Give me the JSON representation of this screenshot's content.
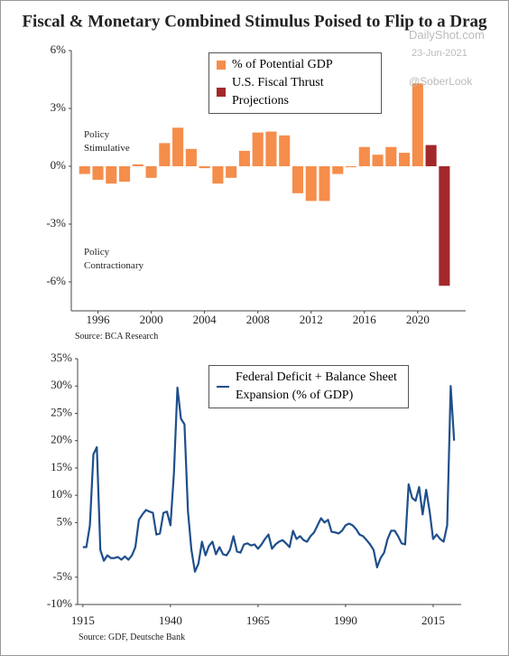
{
  "chart_data": [
    {
      "type": "bar",
      "title": "Fiscal & Monetary Combined Stimulus Poised to Flip to a Drag",
      "x": [
        1995,
        1996,
        1997,
        1998,
        1999,
        2000,
        2001,
        2002,
        2003,
        2004,
        2005,
        2006,
        2007,
        2008,
        2009,
        2010,
        2011,
        2012,
        2013,
        2014,
        2015,
        2016,
        2017,
        2018,
        2019,
        2020,
        2021,
        2022
      ],
      "series": [
        {
          "name": "% of Potential GDP",
          "color": "#f58d4b",
          "values": [
            -0.4,
            -0.7,
            -0.9,
            -0.8,
            0.1,
            -0.6,
            1.2,
            2.0,
            0.9,
            -0.1,
            -0.9,
            -0.6,
            0.8,
            1.75,
            1.8,
            1.6,
            -1.4,
            -1.8,
            -1.8,
            -0.4,
            -0.05,
            1.0,
            0.6,
            1.0,
            0.7,
            4.3,
            null,
            null
          ]
        },
        {
          "name": "U.S. Fiscal Thrust Projections",
          "color": "#a3282b",
          "values": [
            null,
            null,
            null,
            null,
            null,
            null,
            null,
            null,
            null,
            null,
            null,
            null,
            null,
            null,
            null,
            null,
            null,
            null,
            null,
            null,
            null,
            null,
            null,
            null,
            null,
            null,
            1.1,
            -6.2
          ]
        }
      ],
      "xlim": [
        1994,
        2023.6
      ],
      "xticks": [
        1996,
        2000,
        2004,
        2008,
        2012,
        2016,
        2020
      ],
      "ylim": [
        -7.5,
        6
      ],
      "yticks": [
        {
          "value": 6,
          "label": "6%"
        },
        {
          "value": 3,
          "label": "3%"
        },
        {
          "value": 0,
          "label": "0%"
        },
        {
          "value": -3,
          "label": "-3%"
        },
        {
          "value": -6,
          "label": "-6%"
        }
      ],
      "annotations": [
        "Policy\nStimulative",
        "Policy\nContractionary"
      ],
      "source": "Source:  BCA Research",
      "legend": "upper center"
    },
    {
      "type": "line",
      "x": [
        1915,
        1916,
        1917,
        1918,
        1919,
        1920,
        1921,
        1922,
        1923,
        1924,
        1925,
        1926,
        1927,
        1928,
        1929,
        1930,
        1931,
        1932,
        1933,
        1934,
        1935,
        1936,
        1937,
        1938,
        1939,
        1940,
        1941,
        1942,
        1943,
        1944,
        1945,
        1946,
        1947,
        1948,
        1949,
        1950,
        1951,
        1952,
        1953,
        1954,
        1955,
        1956,
        1957,
        1958,
        1959,
        1960,
        1961,
        1962,
        1963,
        1964,
        1965,
        1966,
        1967,
        1968,
        1969,
        1970,
        1971,
        1972,
        1973,
        1974,
        1975,
        1976,
        1977,
        1978,
        1979,
        1980,
        1981,
        1982,
        1983,
        1984,
        1985,
        1986,
        1987,
        1988,
        1989,
        1990,
        1991,
        1992,
        1993,
        1994,
        1995,
        1996,
        1997,
        1998,
        1999,
        2000,
        2001,
        2002,
        2003,
        2004,
        2005,
        2006,
        2007,
        2008,
        2009,
        2010,
        2011,
        2012,
        2013,
        2014,
        2015,
        2016,
        2017,
        2018,
        2019,
        2020,
        2021
      ],
      "series": [
        {
          "name": "Federal Deficit + Balance Sheet Expansion (% of GDP)",
          "color": "#1f4f8b",
          "values": [
            0.5,
            0.5,
            4.5,
            17.5,
            18.8,
            0,
            -2,
            -1,
            -1.5,
            -1.5,
            -1.3,
            -1.8,
            -1.2,
            -1.8,
            -1,
            0.5,
            5.5,
            6.5,
            7.3,
            7,
            6.8,
            2.8,
            3,
            6.8,
            7,
            4.5,
            14,
            29.7,
            24,
            23,
            7,
            0,
            -4,
            -2.5,
            1.5,
            -1,
            0.7,
            1.5,
            -0.8,
            0.5,
            -0.8,
            -1,
            0,
            2.5,
            -0.3,
            -0.5,
            1,
            1.2,
            0.8,
            1,
            0.2,
            1,
            2,
            2.8,
            0.2,
            1,
            1.5,
            1.8,
            1.2,
            0.5,
            3.5,
            2,
            2.5,
            1.8,
            1.5,
            2.5,
            3.2,
            4.5,
            5.8,
            5,
            5.5,
            3.3,
            3.2,
            3,
            3.5,
            4.5,
            4.8,
            4.5,
            3.8,
            2.8,
            2.5,
            1.8,
            1,
            0,
            -3.2,
            -1.5,
            -0.5,
            2,
            3.5,
            3.5,
            2.5,
            1.2,
            1,
            12,
            9.5,
            9,
            11.5,
            6.5,
            11,
            7,
            2,
            2.8,
            2,
            1.5,
            4.5,
            30,
            20
          ]
        }
      ],
      "xlim": [
        1913.5,
        2023
      ],
      "xticks": [
        1915,
        1940,
        1965,
        1990,
        2015
      ],
      "ylim": [
        -10,
        35
      ],
      "yticks": [
        {
          "value": 35,
          "label": "35%"
        },
        {
          "value": 30,
          "label": "30%"
        },
        {
          "value": 25,
          "label": "25%"
        },
        {
          "value": 20,
          "label": "20%"
        },
        {
          "value": 15,
          "label": "15%"
        },
        {
          "value": 10,
          "label": "10%"
        },
        {
          "value": 5,
          "label": "5%"
        },
        {
          "value": -5,
          "label": "-5%"
        },
        {
          "value": -10,
          "label": "-10%"
        }
      ],
      "source": "Source:  GDF, Deutsche Bank",
      "legend": "upper center"
    }
  ],
  "watermark": [
    "DailyShot.com",
    "23-Jun-2021",
    "@SoberLook"
  ]
}
